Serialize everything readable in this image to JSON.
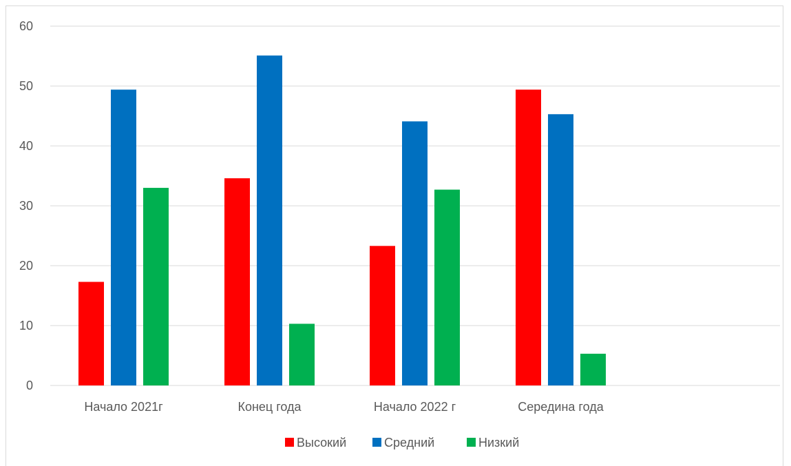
{
  "chart_data": {
    "type": "bar",
    "title": "",
    "xlabel": "",
    "ylabel": "",
    "categories": [
      "Начало 2021г",
      "Конец года",
      "Начало 2022 г",
      "Середина года"
    ],
    "series": [
      {
        "name": "Высокий",
        "color": "#ff0000",
        "values": [
          17.3,
          34.6,
          23.3,
          49.4
        ]
      },
      {
        "name": "Средний",
        "color": "#0070c0",
        "values": [
          49.4,
          55.1,
          44.1,
          45.3
        ]
      },
      {
        "name": "Низкий",
        "color": "#00b050",
        "values": [
          33.0,
          10.3,
          32.7,
          5.3
        ]
      }
    ],
    "ylim": [
      0,
      60
    ],
    "yticks": [
      "0",
      "10",
      "20",
      "30",
      "40",
      "50",
      "60"
    ],
    "grid": true,
    "legend": "bottom"
  }
}
